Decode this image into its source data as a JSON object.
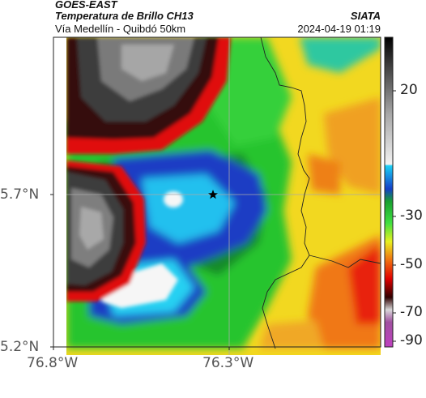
{
  "header": {
    "satellite": "GOES-EAST",
    "product": "Temperatura de Brillo CH13",
    "region": "Vía Medellín - Quibdó 50km",
    "agency": "SIATA",
    "datetime": "2024-04-19 01:19"
  },
  "axes": {
    "lat_ticks": [
      "5.7°N",
      "5.2°N"
    ],
    "lon_ticks": [
      "76.8°W",
      "76.3°W"
    ]
  },
  "colorbar": {
    "ticks": [
      "20",
      "-30",
      "-50",
      "-70",
      "-90"
    ]
  },
  "markers": [
    {
      "type": "star",
      "lat": 5.7,
      "lon": -76.35
    }
  ],
  "colors": {
    "cold_white": "#f4f4f4",
    "cyan": "#25c8f0",
    "blue": "#1848c8",
    "green": "#22c82a",
    "yellow": "#f0e020",
    "red": "#e81010",
    "gray": "#7a7a7a"
  }
}
